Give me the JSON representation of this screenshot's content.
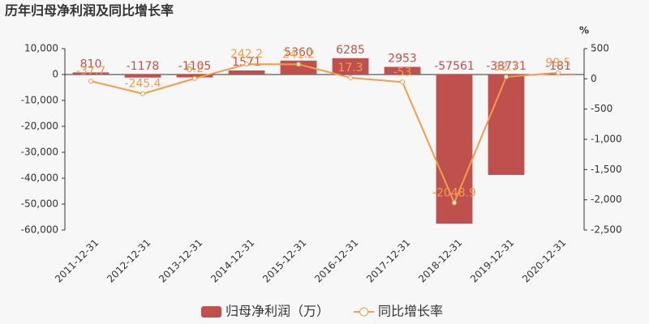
{
  "chart_data": {
    "type": "bar",
    "title": "历年归母净利润及同比增长率",
    "y2_unit": "%",
    "categories": [
      "2011-12-31",
      "2012-12-31",
      "2013-12-31",
      "2014-12-31",
      "2015-12-31",
      "2016-12-31",
      "2017-12-31",
      "2018-12-31",
      "2019-12-31",
      "2020-12-31"
    ],
    "series": [
      {
        "name": "归母净利润（万）",
        "type": "bar",
        "color": "#c0504d",
        "values": [
          810,
          -1178,
          -1105,
          1571,
          5360,
          6285,
          2953,
          -57561,
          -38731,
          -181
        ]
      },
      {
        "name": "同比增长率",
        "type": "line",
        "axis": "y2",
        "color": "#f39c49",
        "values": [
          -37.7,
          -245.4,
          6.2,
          242.2,
          241.2,
          17.3,
          -53,
          -2048.9,
          32.7,
          99.5
        ]
      }
    ],
    "ylim": [
      -60000,
      10000
    ],
    "yticks": [
      {
        "value": -60000,
        "label": "-60,000"
      },
      {
        "value": -50000,
        "label": "-50,000"
      },
      {
        "value": -40000,
        "label": "-40,000"
      },
      {
        "value": -30000,
        "label": "-30,000"
      },
      {
        "value": -20000,
        "label": "-20,000"
      },
      {
        "value": -10000,
        "label": "-10,000"
      },
      0,
      {
        "value": 10000,
        "label": "10,000"
      }
    ],
    "y2lim": [
      -2500,
      500
    ],
    "y2ticks": [
      {
        "value": -2500,
        "label": "-2,500"
      },
      {
        "value": -2000,
        "label": "-2,000"
      },
      {
        "value": -1500,
        "label": "-1,500"
      },
      {
        "value": -1000,
        "label": "-1,000"
      },
      -500,
      0,
      500
    ],
    "legend": "bottom"
  }
}
